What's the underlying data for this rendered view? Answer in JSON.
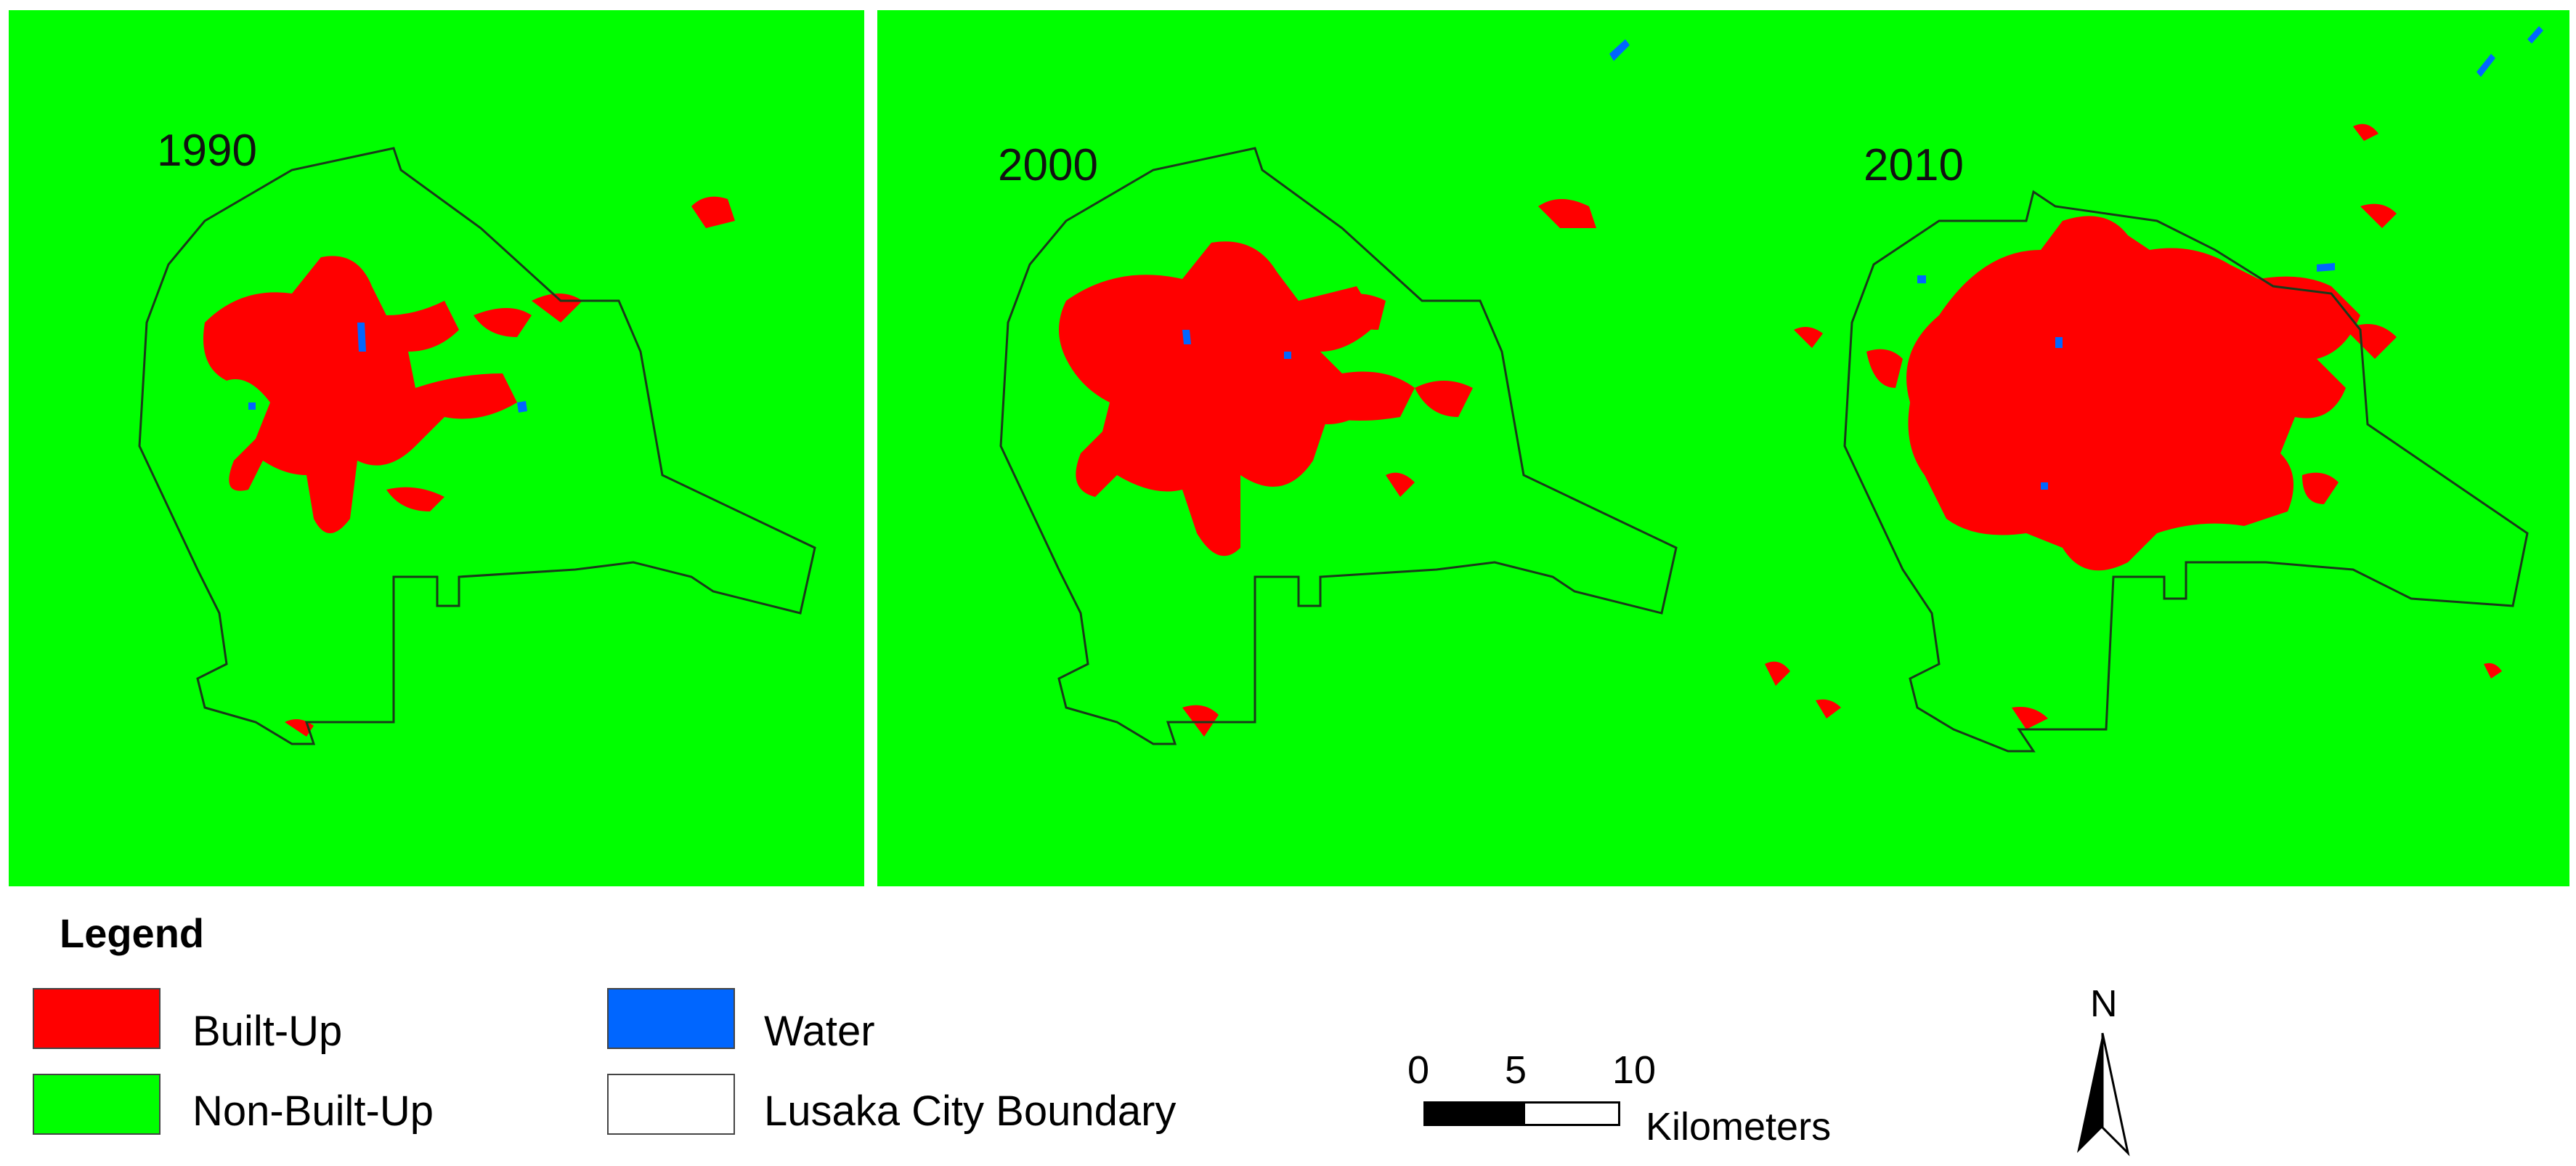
{
  "panels": [
    {
      "year": "1990"
    },
    {
      "year": "2000"
    },
    {
      "year": "2010"
    }
  ],
  "colors": {
    "built_up": "#ff0000",
    "non_built_up": "#00ff00",
    "water": "#0066ff",
    "boundary": "#1a3a1a"
  },
  "legend": {
    "title": "Legend",
    "items": [
      {
        "label": "Built-Up"
      },
      {
        "label": "Non-Built-Up"
      },
      {
        "label": "Water"
      },
      {
        "label": "Lusaka City Boundary"
      }
    ]
  },
  "scale_bar": {
    "ticks": [
      "0",
      "5",
      "10"
    ],
    "unit": "Kilometers"
  },
  "north_arrow": {
    "label": "N",
    "icon": "north-arrow-icon"
  }
}
